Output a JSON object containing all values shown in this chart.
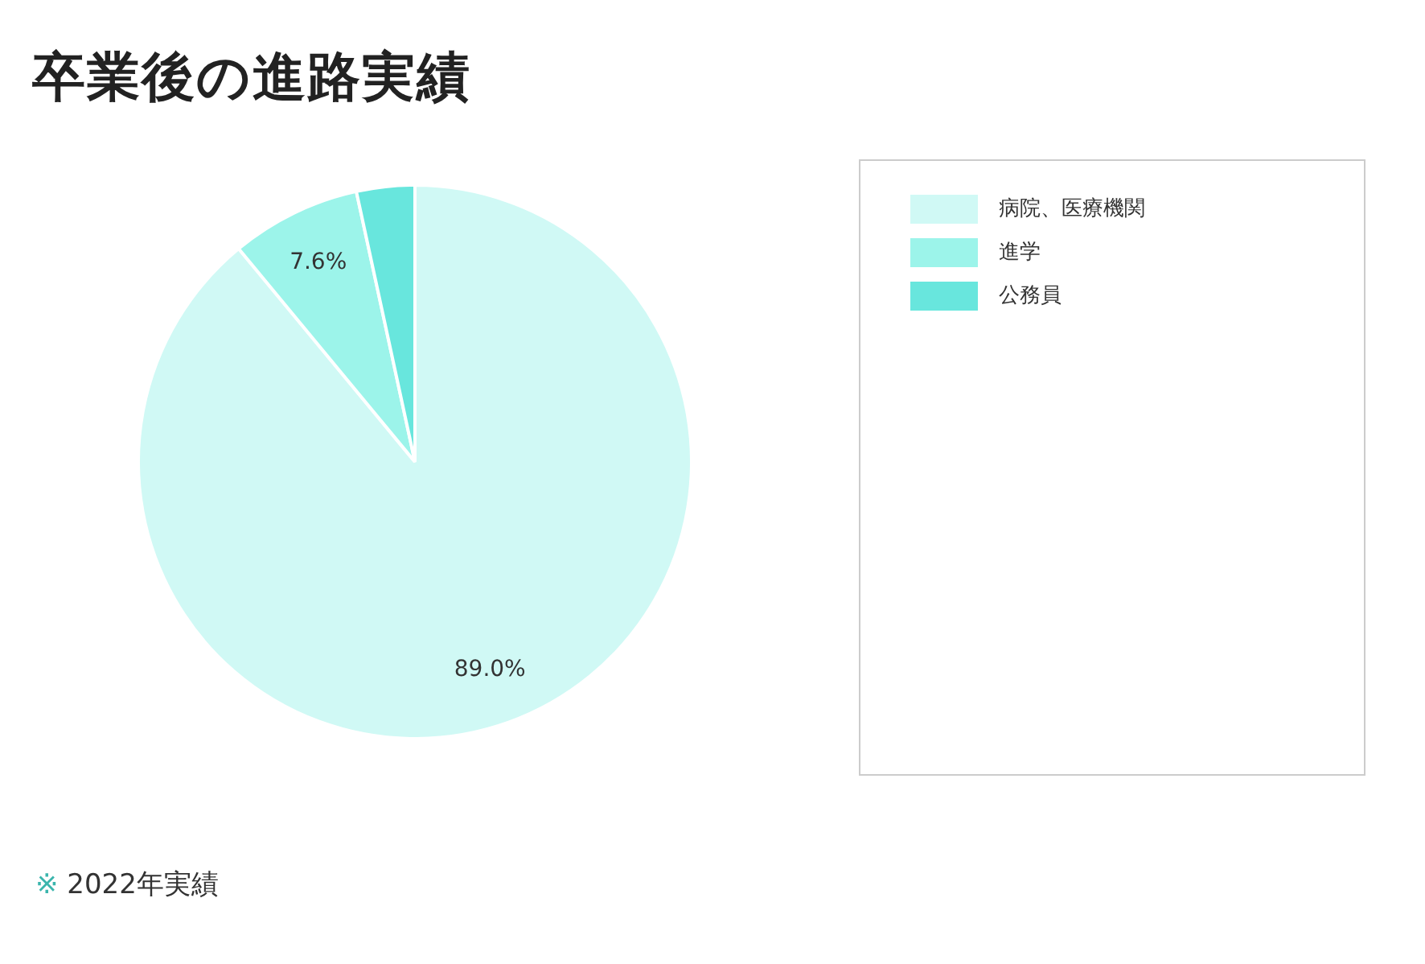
{
  "chart_data": {
    "type": "pie",
    "title": "卒業後の進路実績",
    "categories": [
      "病院、医療機関",
      "進学",
      "公務員"
    ],
    "values": [
      89.0,
      7.6,
      3.4
    ],
    "colors": [
      "#d0f9f5",
      "#9cf4ea",
      "#68e6dd"
    ],
    "value_labels": [
      "89.0%",
      "7.6%",
      null
    ],
    "legend": "right",
    "annotations": [
      "※ 2022年実績"
    ]
  }
}
